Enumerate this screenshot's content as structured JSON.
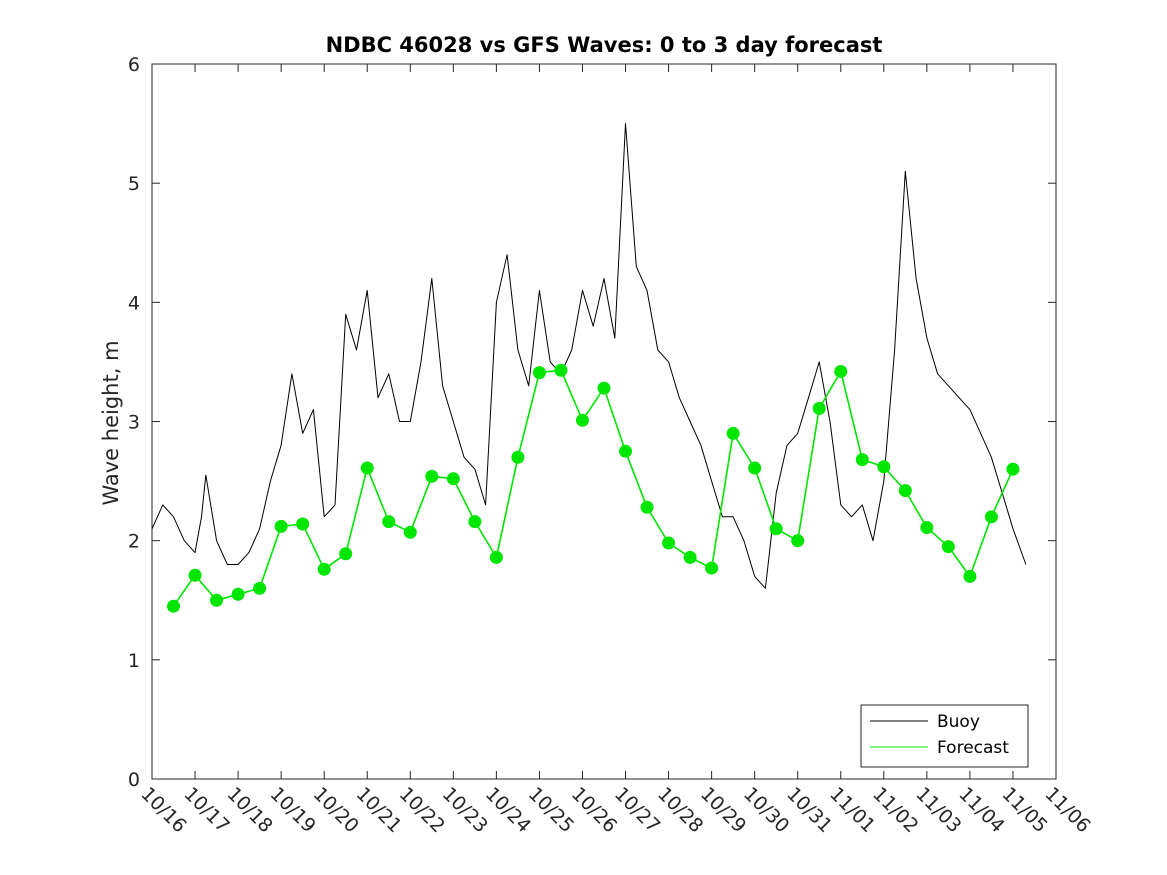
{
  "chart_data": {
    "type": "line",
    "title": "NDBC 46028 vs GFS Waves: 0 to 3 day forecast",
    "xlabel": "",
    "ylabel": "Wave height, m",
    "ylim": [
      0,
      6
    ],
    "yticks": [
      0,
      1,
      2,
      3,
      4,
      5,
      6
    ],
    "xlim_days": [
      0,
      21
    ],
    "xtick_labels": [
      "10/16",
      "10/17",
      "10/18",
      "10/19",
      "10/20",
      "10/21",
      "10/22",
      "10/23",
      "10/24",
      "10/25",
      "10/26",
      "10/27",
      "10/28",
      "10/29",
      "10/30",
      "10/31",
      "11/01",
      "11/02",
      "11/03",
      "11/04",
      "11/05",
      "11/06"
    ],
    "legend": {
      "placement": "bottom-right",
      "entries": [
        {
          "label": "Buoy",
          "color": "#000000"
        },
        {
          "label": "Forecast",
          "color": "#00e600"
        }
      ]
    },
    "series": [
      {
        "name": "Buoy",
        "color": "#000000",
        "x": [
          0.0,
          0.25,
          0.5,
          0.75,
          1.0,
          1.15,
          1.25,
          1.5,
          1.75,
          2.0,
          2.25,
          2.5,
          2.75,
          3.0,
          3.25,
          3.5,
          3.75,
          4.0,
          4.25,
          4.5,
          4.75,
          5.0,
          5.25,
          5.5,
          5.75,
          6.0,
          6.25,
          6.5,
          6.75,
          7.0,
          7.25,
          7.5,
          7.75,
          8.0,
          8.25,
          8.5,
          8.75,
          9.0,
          9.25,
          9.5,
          9.75,
          10.0,
          10.25,
          10.5,
          10.75,
          11.0,
          11.25,
          11.5,
          11.75,
          12.0,
          12.25,
          12.5,
          12.75,
          13.0,
          13.25,
          13.5,
          13.75,
          14.0,
          14.25,
          14.5,
          14.75,
          15.0,
          15.25,
          15.5,
          15.75,
          16.0,
          16.25,
          16.5,
          16.75,
          17.0,
          17.25,
          17.5,
          17.75,
          18.0,
          18.25,
          18.5,
          18.75,
          19.0,
          19.25,
          19.5,
          19.75,
          20.0,
          20.3
        ],
        "values": [
          2.1,
          2.3,
          2.2,
          2.0,
          1.9,
          2.2,
          2.55,
          2.0,
          1.8,
          1.8,
          1.9,
          2.1,
          2.5,
          2.8,
          3.4,
          2.9,
          3.1,
          2.2,
          2.3,
          3.9,
          3.6,
          4.1,
          3.2,
          3.4,
          3.0,
          3.0,
          3.5,
          4.2,
          3.3,
          3.0,
          2.7,
          2.6,
          2.3,
          4.0,
          4.4,
          3.6,
          3.3,
          4.1,
          3.5,
          3.4,
          3.6,
          4.1,
          3.8,
          4.2,
          3.7,
          5.5,
          4.3,
          4.1,
          3.6,
          3.5,
          3.2,
          3.0,
          2.8,
          2.5,
          2.2,
          2.2,
          2.0,
          1.7,
          1.6,
          2.4,
          2.8,
          2.9,
          3.2,
          3.5,
          3.0,
          2.3,
          2.2,
          2.3,
          2.0,
          2.5,
          3.6,
          5.1,
          4.2,
          3.7,
          3.4,
          3.3,
          3.2,
          3.1,
          2.9,
          2.7,
          2.4,
          2.1,
          1.8
        ]
      },
      {
        "name": "Forecast",
        "color": "#00e600",
        "x": [
          0.5,
          1.0,
          1.5,
          2.0,
          2.5,
          3.0,
          3.5,
          4.0,
          4.5,
          5.0,
          5.5,
          6.0,
          6.5,
          7.0,
          7.5,
          8.0,
          8.5,
          9.0,
          9.5,
          10.0,
          10.5,
          11.0,
          11.5,
          12.0,
          12.5,
          13.0,
          13.5,
          14.0,
          14.5,
          15.0,
          15.5,
          16.0,
          16.5,
          17.0,
          17.5,
          18.0,
          18.5,
          19.0,
          19.5,
          20.0
        ],
        "values": [
          1.45,
          1.71,
          1.5,
          1.55,
          1.6,
          2.12,
          2.14,
          1.76,
          1.89,
          2.61,
          2.16,
          2.07,
          2.54,
          2.52,
          2.16,
          1.86,
          2.7,
          3.41,
          3.43,
          3.01,
          3.28,
          2.75,
          2.28,
          1.98,
          1.86,
          1.77,
          2.9,
          2.61,
          2.1,
          2.0,
          3.11,
          3.42,
          2.68,
          2.62,
          2.42,
          2.11,
          1.95,
          1.7,
          2.2,
          2.6
        ]
      }
    ]
  }
}
